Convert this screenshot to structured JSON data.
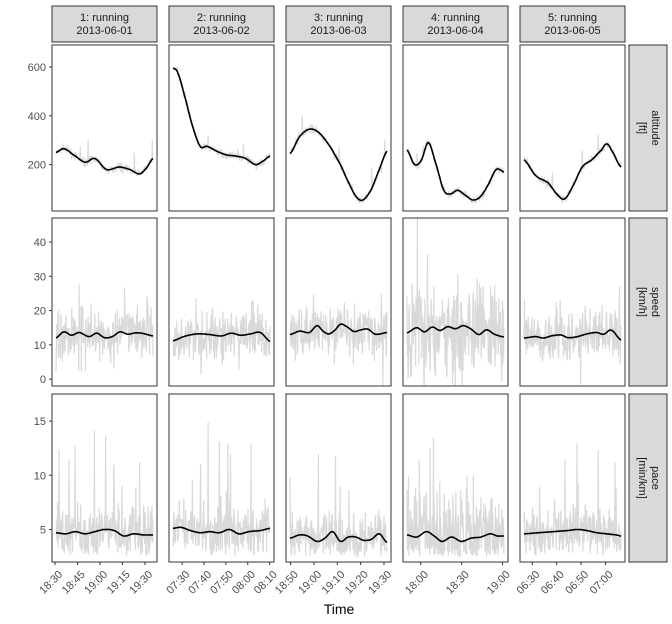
{
  "chart_data": {
    "type": "line",
    "xlabel": "Time",
    "grid": false,
    "legend": "none",
    "colors": {
      "raw": "#d9d9d9",
      "smooth": "#000000",
      "strip_fill": "#d9d9d9",
      "strip_border": "#333333",
      "panel_border": "#333333"
    },
    "sessions": [
      {
        "label": "1: running",
        "date": "2013-06-01",
        "xlim": [
          "18:28",
          "19:38"
        ],
        "xticks": [
          "18:30",
          "18:45",
          "19:00",
          "19:15",
          "19:30"
        ]
      },
      {
        "label": "2: running",
        "date": "2013-06-02",
        "xlim": [
          "07:24",
          "08:12"
        ],
        "xticks": [
          "07:30",
          "07:40",
          "07:50",
          "08:00",
          "08:10"
        ]
      },
      {
        "label": "3: running",
        "date": "2013-06-03",
        "xlim": [
          "18:48",
          "19:33"
        ],
        "xticks": [
          "18:50",
          "19:00",
          "19:10",
          "19:20",
          "19:30"
        ]
      },
      {
        "label": "4: running",
        "date": "2013-06-04",
        "xlim": [
          "17:47",
          "19:04"
        ],
        "xticks": [
          "18:00",
          "18:30",
          "19:00"
        ]
      },
      {
        "label": "5: running",
        "date": "2013-06-05",
        "xlim": [
          "06:25",
          "07:08"
        ],
        "xticks": [
          "06:30",
          "06:40",
          "06:50",
          "07:00"
        ]
      }
    ],
    "rows": [
      {
        "label": "altitude",
        "unit": "[ft]",
        "ylim": [
          10,
          690
        ],
        "yticks": [
          200,
          400,
          600
        ],
        "smooth": [
          [
            [
              0,
              250
            ],
            [
              0.08,
              265
            ],
            [
              0.18,
              240
            ],
            [
              0.3,
              210
            ],
            [
              0.4,
              225
            ],
            [
              0.52,
              180
            ],
            [
              0.65,
              190
            ],
            [
              0.76,
              180
            ],
            [
              0.86,
              162
            ],
            [
              0.93,
              185
            ],
            [
              1,
              225
            ]
          ],
          [
            [
              0,
              595
            ],
            [
              0.05,
              575
            ],
            [
              0.12,
              480
            ],
            [
              0.2,
              360
            ],
            [
              0.28,
              275
            ],
            [
              0.35,
              275
            ],
            [
              0.45,
              255
            ],
            [
              0.55,
              240
            ],
            [
              0.65,
              235
            ],
            [
              0.75,
              225
            ],
            [
              0.85,
              200
            ],
            [
              0.93,
              215
            ],
            [
              1,
              235
            ]
          ],
          [
            [
              0,
              245
            ],
            [
              0.1,
              315
            ],
            [
              0.2,
              345
            ],
            [
              0.3,
              330
            ],
            [
              0.42,
              270
            ],
            [
              0.52,
              200
            ],
            [
              0.6,
              130
            ],
            [
              0.68,
              70
            ],
            [
              0.75,
              55
            ],
            [
              0.84,
              100
            ],
            [
              0.92,
              180
            ],
            [
              1,
              255
            ]
          ],
          [
            [
              0,
              260
            ],
            [
              0.08,
              200
            ],
            [
              0.15,
              220
            ],
            [
              0.22,
              290
            ],
            [
              0.3,
              200
            ],
            [
              0.38,
              95
            ],
            [
              0.45,
              80
            ],
            [
              0.52,
              95
            ],
            [
              0.6,
              75
            ],
            [
              0.68,
              55
            ],
            [
              0.76,
              70
            ],
            [
              0.84,
              120
            ],
            [
              0.92,
              180
            ],
            [
              1,
              170
            ]
          ],
          [
            [
              0,
              220
            ],
            [
              0.12,
              155
            ],
            [
              0.25,
              125
            ],
            [
              0.35,
              75
            ],
            [
              0.42,
              60
            ],
            [
              0.5,
              110
            ],
            [
              0.6,
              190
            ],
            [
              0.7,
              220
            ],
            [
              0.8,
              260
            ],
            [
              0.85,
              285
            ],
            [
              0.9,
              260
            ],
            [
              1,
              190
            ]
          ]
        ]
      },
      {
        "label": "speed",
        "unit": "[km/h]",
        "ylim": [
          -2,
          47
        ],
        "yticks": [
          0,
          10,
          20,
          30,
          40
        ],
        "smooth": [
          [
            [
              0,
              12
            ],
            [
              0.08,
              13.8
            ],
            [
              0.16,
              12.8
            ],
            [
              0.24,
              13.6
            ],
            [
              0.34,
              12.4
            ],
            [
              0.42,
              13.4
            ],
            [
              0.5,
              12.1
            ],
            [
              0.58,
              12.4
            ],
            [
              0.66,
              13.8
            ],
            [
              0.74,
              13.1
            ],
            [
              0.82,
              13.5
            ],
            [
              0.9,
              13.3
            ],
            [
              1,
              12.6
            ]
          ],
          [
            [
              0,
              11.2
            ],
            [
              0.12,
              12.5
            ],
            [
              0.25,
              13.2
            ],
            [
              0.38,
              13
            ],
            [
              0.5,
              12.6
            ],
            [
              0.6,
              13.4
            ],
            [
              0.7,
              12.8
            ],
            [
              0.8,
              13.2
            ],
            [
              0.9,
              13.6
            ],
            [
              1,
              11
            ]
          ],
          [
            [
              0,
              13
            ],
            [
              0.1,
              14
            ],
            [
              0.2,
              13.6
            ],
            [
              0.28,
              15.6
            ],
            [
              0.34,
              14
            ],
            [
              0.4,
              13.2
            ],
            [
              0.46,
              14.2
            ],
            [
              0.52,
              16
            ],
            [
              0.58,
              15.4
            ],
            [
              0.66,
              13.9
            ],
            [
              0.72,
              14.3
            ],
            [
              0.8,
              14.6
            ],
            [
              0.88,
              13.1
            ],
            [
              1,
              13.6
            ]
          ],
          [
            [
              0,
              13.5
            ],
            [
              0.1,
              15
            ],
            [
              0.18,
              13.8
            ],
            [
              0.26,
              15.2
            ],
            [
              0.34,
              14.2
            ],
            [
              0.42,
              15.3
            ],
            [
              0.5,
              14.7
            ],
            [
              0.58,
              15.6
            ],
            [
              0.66,
              14.6
            ],
            [
              0.74,
              13
            ],
            [
              0.82,
              14.4
            ],
            [
              0.9,
              13.1
            ],
            [
              1,
              12.3
            ]
          ],
          [
            [
              0,
              12
            ],
            [
              0.12,
              12.4
            ],
            [
              0.2,
              12
            ],
            [
              0.28,
              12.6
            ],
            [
              0.38,
              12.9
            ],
            [
              0.45,
              12.1
            ],
            [
              0.55,
              12.4
            ],
            [
              0.65,
              13.2
            ],
            [
              0.75,
              13.6
            ],
            [
              0.82,
              13.1
            ],
            [
              0.9,
              14.3
            ],
            [
              1,
              11.4
            ]
          ]
        ]
      },
      {
        "label": "pace",
        "unit": "[min/km]",
        "ylim": [
          2,
          17.5
        ],
        "yticks": [
          5,
          10,
          15
        ],
        "smooth": [
          [
            [
              0,
              4.7
            ],
            [
              0.1,
              4.6
            ],
            [
              0.2,
              4.8
            ],
            [
              0.3,
              4.6
            ],
            [
              0.4,
              4.8
            ],
            [
              0.5,
              5
            ],
            [
              0.6,
              4.9
            ],
            [
              0.7,
              4.4
            ],
            [
              0.8,
              4.6
            ],
            [
              0.9,
              4.5
            ],
            [
              1,
              4.5
            ]
          ],
          [
            [
              0,
              5.1
            ],
            [
              0.08,
              5.2
            ],
            [
              0.18,
              4.9
            ],
            [
              0.28,
              4.7
            ],
            [
              0.38,
              4.8
            ],
            [
              0.48,
              4.7
            ],
            [
              0.58,
              5
            ],
            [
              0.68,
              4.6
            ],
            [
              0.78,
              4.8
            ],
            [
              0.9,
              4.9
            ],
            [
              1,
              5.1
            ]
          ],
          [
            [
              0,
              4.2
            ],
            [
              0.1,
              4.5
            ],
            [
              0.18,
              4.4
            ],
            [
              0.28,
              3.9
            ],
            [
              0.36,
              4.2
            ],
            [
              0.44,
              4.8
            ],
            [
              0.52,
              3.9
            ],
            [
              0.6,
              4.3
            ],
            [
              0.68,
              4.3
            ],
            [
              0.76,
              4
            ],
            [
              0.84,
              4.1
            ],
            [
              0.92,
              4.6
            ],
            [
              1,
              3.8
            ]
          ],
          [
            [
              0,
              4.5
            ],
            [
              0.1,
              4.3
            ],
            [
              0.2,
              4.8
            ],
            [
              0.28,
              4.4
            ],
            [
              0.36,
              3.9
            ],
            [
              0.46,
              4.3
            ],
            [
              0.56,
              3.9
            ],
            [
              0.66,
              4.2
            ],
            [
              0.76,
              4.3
            ],
            [
              0.86,
              4.6
            ],
            [
              0.93,
              4.4
            ],
            [
              1,
              4.4
            ]
          ],
          [
            [
              0,
              4.6
            ],
            [
              0.15,
              4.7
            ],
            [
              0.3,
              4.8
            ],
            [
              0.45,
              4.9
            ],
            [
              0.55,
              5
            ],
            [
              0.65,
              4.9
            ],
            [
              0.75,
              4.7
            ],
            [
              0.85,
              4.6
            ],
            [
              0.95,
              4.5
            ],
            [
              1,
              4.4
            ]
          ]
        ]
      }
    ]
  }
}
